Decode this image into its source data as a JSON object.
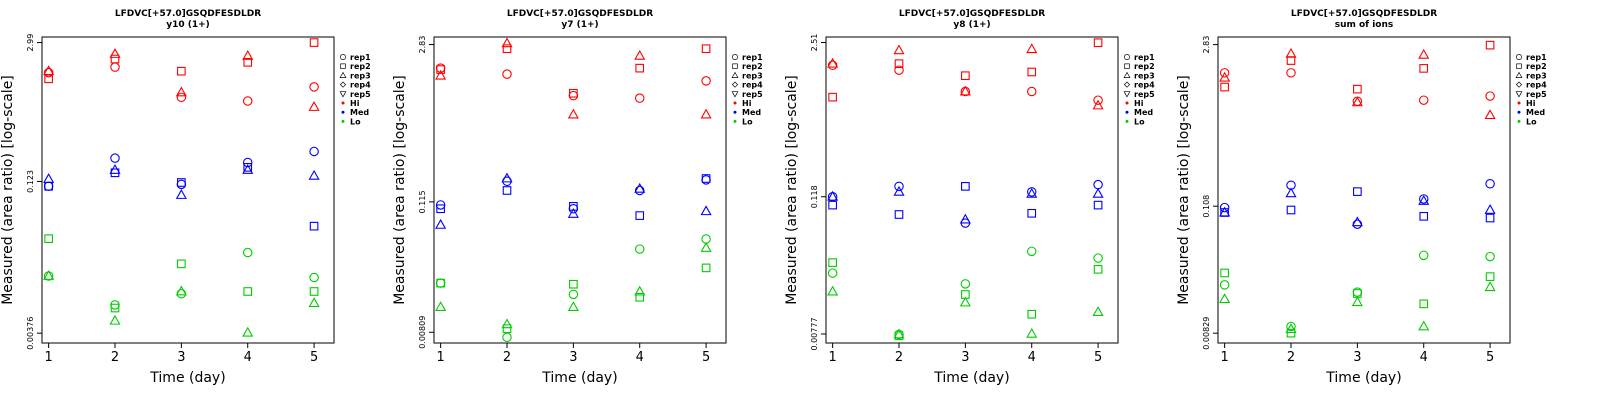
{
  "chart_data": [
    {
      "type": "scatter",
      "title": "LFDVC[+57.0]GSQDFESDLDR",
      "subtitle": "y10 (1+)",
      "xlabel": "Time (day)",
      "ylabel": "Measured (area ratio) [log-scale]",
      "x_ticks": [
        "1",
        "2",
        "3",
        "4",
        "5"
      ],
      "y_ticks": [
        "0.00376",
        "0.123",
        "2.99"
      ],
      "ylim": [
        0.003,
        3.4
      ],
      "legend": [
        {
          "label": "rep1",
          "marker": "circle"
        },
        {
          "label": "rep2",
          "marker": "square"
        },
        {
          "label": "rep3",
          "marker": "triangle-up"
        },
        {
          "label": "rep4",
          "marker": "diamond"
        },
        {
          "label": "rep5",
          "marker": "triangle-down"
        },
        {
          "label": "Hi",
          "marker": "dot",
          "color": "#ff0000"
        },
        {
          "label": "Med",
          "marker": "dot",
          "color": "#0000ff"
        },
        {
          "label": "Lo",
          "marker": "dot",
          "color": "#00cc00"
        }
      ],
      "series": [
        {
          "group": "Hi",
          "rep": "rep1",
          "x": [
            1,
            2,
            3,
            4,
            5
          ],
          "y": [
            1.5,
            1.7,
            0.85,
            0.78,
            1.08
          ]
        },
        {
          "group": "Hi",
          "rep": "rep2",
          "x": [
            1,
            2,
            3,
            4,
            5
          ],
          "y": [
            1.3,
            2.05,
            1.55,
            1.9,
            2.99
          ]
        },
        {
          "group": "Hi",
          "rep": "rep3",
          "x": [
            1,
            2,
            3,
            4,
            5
          ],
          "y": [
            1.55,
            2.3,
            0.95,
            2.2,
            0.68
          ]
        },
        {
          "group": "Med",
          "rep": "rep1",
          "x": [
            1,
            2,
            3,
            4,
            5
          ],
          "y": [
            0.11,
            0.21,
            0.115,
            0.19,
            0.245
          ]
        },
        {
          "group": "Med",
          "rep": "rep2",
          "x": [
            1,
            2,
            3,
            4,
            5
          ],
          "y": [
            0.11,
            0.15,
            0.12,
            0.17,
            0.044
          ]
        },
        {
          "group": "Med",
          "rep": "rep3",
          "x": [
            1,
            2,
            3,
            4,
            5
          ],
          "y": [
            0.13,
            0.16,
            0.09,
            0.16,
            0.14
          ]
        },
        {
          "group": "Lo",
          "rep": "rep1",
          "x": [
            1,
            2,
            3,
            4,
            5
          ],
          "y": [
            0.014,
            0.0072,
            0.0093,
            0.024,
            0.0135
          ]
        },
        {
          "group": "Lo",
          "rep": "rep2",
          "x": [
            1,
            2,
            3,
            4,
            5
          ],
          "y": [
            0.033,
            0.0067,
            0.0185,
            0.0098,
            0.0098
          ]
        },
        {
          "group": "Lo",
          "rep": "rep3",
          "x": [
            1,
            2,
            3,
            4,
            5
          ],
          "y": [
            0.014,
            0.005,
            0.0098,
            0.0038,
            0.0075
          ]
        }
      ]
    },
    {
      "type": "scatter",
      "title": "LFDVC[+57.0]GSQDFESDLDR",
      "subtitle": "y7 (1+)",
      "xlabel": "Time (day)",
      "ylabel": "Measured (area ratio) [log-scale]",
      "x_ticks": [
        "1",
        "2",
        "3",
        "4",
        "5"
      ],
      "y_ticks": [
        "0.00809",
        "0.115",
        "2.83"
      ],
      "ylim": [
        0.0065,
        3.3
      ],
      "legend": [
        {
          "label": "rep1",
          "marker": "circle"
        },
        {
          "label": "rep2",
          "marker": "square"
        },
        {
          "label": "rep3",
          "marker": "triangle-up"
        },
        {
          "label": "rep4",
          "marker": "diamond"
        },
        {
          "label": "rep5",
          "marker": "triangle-down"
        },
        {
          "label": "Hi",
          "marker": "dot",
          "color": "#ff0000"
        },
        {
          "label": "Med",
          "marker": "dot",
          "color": "#0000ff"
        },
        {
          "label": "Lo",
          "marker": "dot",
          "color": "#00cc00"
        }
      ],
      "series": [
        {
          "group": "Hi",
          "rep": "rep1",
          "x": [
            1,
            2,
            3,
            4,
            5
          ],
          "y": [
            1.75,
            1.55,
            1.0,
            0.95,
            1.35
          ]
        },
        {
          "group": "Hi",
          "rep": "rep2",
          "x": [
            1,
            2,
            3,
            4,
            5
          ],
          "y": [
            1.7,
            2.6,
            1.05,
            1.75,
            2.6
          ]
        },
        {
          "group": "Hi",
          "rep": "rep3",
          "x": [
            1,
            2,
            3,
            4,
            5
          ],
          "y": [
            1.5,
            2.9,
            0.68,
            2.25,
            0.68
          ]
        },
        {
          "group": "Med",
          "rep": "rep1",
          "x": [
            1,
            2,
            3,
            4,
            5
          ],
          "y": [
            0.108,
            0.175,
            0.1,
            0.145,
            0.18
          ]
        },
        {
          "group": "Med",
          "rep": "rep2",
          "x": [
            1,
            2,
            3,
            4,
            5
          ],
          "y": [
            0.1,
            0.145,
            0.105,
            0.087,
            0.185
          ]
        },
        {
          "group": "Med",
          "rep": "rep3",
          "x": [
            1,
            2,
            3,
            4,
            5
          ],
          "y": [
            0.072,
            0.185,
            0.09,
            0.15,
            0.095
          ]
        },
        {
          "group": "Lo",
          "rep": "rep1",
          "x": [
            1,
            2,
            3,
            4,
            5
          ],
          "y": [
            0.022,
            0.0073,
            0.0175,
            0.044,
            0.054
          ]
        },
        {
          "group": "Lo",
          "rep": "rep2",
          "x": [
            1,
            2,
            3,
            4,
            5
          ],
          "y": [
            0.022,
            0.0087,
            0.0215,
            0.0165,
            0.03
          ]
        },
        {
          "group": "Lo",
          "rep": "rep3",
          "x": [
            1,
            2,
            3,
            4,
            5
          ],
          "y": [
            0.0135,
            0.0095,
            0.0135,
            0.0185,
            0.045
          ]
        }
      ]
    },
    {
      "type": "scatter",
      "title": "LFDVC[+57.0]GSQDFESDLDR",
      "subtitle": "y8 (1+)",
      "xlabel": "Time (day)",
      "ylabel": "Measured (area ratio) [log-scale]",
      "x_ticks": [
        "1",
        "2",
        "3",
        "4",
        "5"
      ],
      "y_ticks": [
        "0.00777",
        "0.118",
        "2.51"
      ],
      "ylim": [
        0.0065,
        2.8
      ],
      "legend": [
        {
          "label": "rep1",
          "marker": "circle"
        },
        {
          "label": "rep2",
          "marker": "square"
        },
        {
          "label": "rep3",
          "marker": "triangle-up"
        },
        {
          "label": "rep4",
          "marker": "diamond"
        },
        {
          "label": "rep5",
          "marker": "triangle-down"
        },
        {
          "label": "Hi",
          "marker": "dot",
          "color": "#ff0000"
        },
        {
          "label": "Med",
          "marker": "dot",
          "color": "#0000ff"
        },
        {
          "label": "Lo",
          "marker": "dot",
          "color": "#00cc00"
        }
      ],
      "series": [
        {
          "group": "Hi",
          "rep": "rep1",
          "x": [
            1,
            2,
            3,
            4,
            5
          ],
          "y": [
            1.6,
            1.45,
            0.95,
            0.95,
            0.8
          ]
        },
        {
          "group": "Hi",
          "rep": "rep2",
          "x": [
            1,
            2,
            3,
            4,
            5
          ],
          "y": [
            0.85,
            1.65,
            1.3,
            1.4,
            2.5
          ]
        },
        {
          "group": "Hi",
          "rep": "rep3",
          "x": [
            1,
            2,
            3,
            4,
            5
          ],
          "y": [
            1.65,
            2.15,
            0.95,
            2.2,
            0.72
          ]
        },
        {
          "group": "Med",
          "rep": "rep1",
          "x": [
            1,
            2,
            3,
            4,
            5
          ],
          "y": [
            0.118,
            0.145,
            0.07,
            0.13,
            0.15
          ]
        },
        {
          "group": "Med",
          "rep": "rep2",
          "x": [
            1,
            2,
            3,
            4,
            5
          ],
          "y": [
            0.1,
            0.083,
            0.145,
            0.085,
            0.1
          ]
        },
        {
          "group": "Med",
          "rep": "rep3",
          "x": [
            1,
            2,
            3,
            4,
            5
          ],
          "y": [
            0.118,
            0.13,
            0.075,
            0.125,
            0.125
          ]
        },
        {
          "group": "Lo",
          "rep": "rep1",
          "x": [
            1,
            2,
            3,
            4,
            5
          ],
          "y": [
            0.026,
            0.0077,
            0.021,
            0.04,
            0.035
          ]
        },
        {
          "group": "Lo",
          "rep": "rep2",
          "x": [
            1,
            2,
            3,
            4,
            5
          ],
          "y": [
            0.032,
            0.0075,
            0.017,
            0.0115,
            0.028
          ]
        },
        {
          "group": "Lo",
          "rep": "rep3",
          "x": [
            1,
            2,
            3,
            4,
            5
          ],
          "y": [
            0.018,
            0.0077,
            0.0145,
            0.0078,
            0.012
          ]
        }
      ]
    },
    {
      "type": "scatter",
      "title": "LFDVC[+57.0]GSQDFESDLDR",
      "subtitle": "sum of ions",
      "xlabel": "Time (day)",
      "ylabel": "Measured (area ratio) [log-scale]",
      "x_ticks": [
        "1",
        "2",
        "3",
        "4",
        "5"
      ],
      "y_ticks": [
        "0.00829",
        "0.108",
        "2.83"
      ],
      "ylim": [
        0.0068,
        3.3
      ],
      "legend": [
        {
          "label": "rep1",
          "marker": "circle"
        },
        {
          "label": "rep2",
          "marker": "square"
        },
        {
          "label": "rep3",
          "marker": "triangle-up"
        },
        {
          "label": "rep4",
          "marker": "diamond"
        },
        {
          "label": "rep5",
          "marker": "triangle-down"
        },
        {
          "label": "Hi",
          "marker": "dot",
          "color": "#ff0000"
        },
        {
          "label": "Med",
          "marker": "dot",
          "color": "#0000ff"
        },
        {
          "label": "Lo",
          "marker": "dot",
          "color": "#00cc00"
        }
      ],
      "series": [
        {
          "group": "Hi",
          "rep": "rep1",
          "x": [
            1,
            2,
            3,
            4,
            5
          ],
          "y": [
            1.6,
            1.6,
            0.9,
            0.92,
            1.0
          ]
        },
        {
          "group": "Hi",
          "rep": "rep2",
          "x": [
            1,
            2,
            3,
            4,
            5
          ],
          "y": [
            1.2,
            2.05,
            1.15,
            1.75,
            2.8
          ]
        },
        {
          "group": "Hi",
          "rep": "rep3",
          "x": [
            1,
            2,
            3,
            4,
            5
          ],
          "y": [
            1.45,
            2.35,
            0.88,
            2.3,
            0.68
          ]
        },
        {
          "group": "Med",
          "rep": "rep1",
          "x": [
            1,
            2,
            3,
            4,
            5
          ],
          "y": [
            0.105,
            0.165,
            0.075,
            0.125,
            0.17
          ]
        },
        {
          "group": "Med",
          "rep": "rep2",
          "x": [
            1,
            2,
            3,
            4,
            5
          ],
          "y": [
            0.095,
            0.1,
            0.145,
            0.088,
            0.085
          ]
        },
        {
          "group": "Med",
          "rep": "rep3",
          "x": [
            1,
            2,
            3,
            4,
            5
          ],
          "y": [
            0.095,
            0.14,
            0.078,
            0.12,
            0.1
          ]
        },
        {
          "group": "Lo",
          "rep": "rep1",
          "x": [
            1,
            2,
            3,
            4,
            5
          ],
          "y": [
            0.022,
            0.0095,
            0.019,
            0.04,
            0.039
          ]
        },
        {
          "group": "Lo",
          "rep": "rep2",
          "x": [
            1,
            2,
            3,
            4,
            5
          ],
          "y": [
            0.028,
            0.0083,
            0.0185,
            0.015,
            0.026
          ]
        },
        {
          "group": "Lo",
          "rep": "rep3",
          "x": [
            1,
            2,
            3,
            4,
            5
          ],
          "y": [
            0.0165,
            0.009,
            0.0155,
            0.0095,
            0.021
          ]
        }
      ]
    }
  ],
  "colors": {
    "Hi": "#ff0000",
    "Med": "#0000ff",
    "Lo": "#00cc00"
  }
}
